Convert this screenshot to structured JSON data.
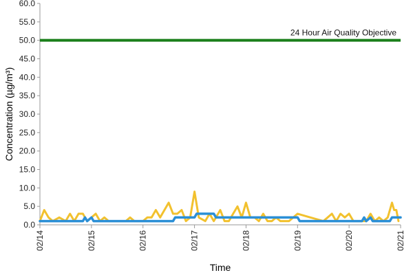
{
  "chart_data": {
    "type": "line",
    "xlabel": "Time",
    "ylabel": "Concentration (µg/m³)",
    "ylim": [
      0,
      60
    ],
    "yticks": [
      "0.0",
      "5.0",
      "10.0",
      "15.0",
      "20.0",
      "25.0",
      "30.0",
      "35.0",
      "40.0",
      "45.0",
      "50.0",
      "55.0",
      "60.0"
    ],
    "xlim": [
      "02/14",
      "02/21"
    ],
    "xticks": [
      "02/14",
      "02/15",
      "02/16",
      "02/17",
      "02/18",
      "02/19",
      "02/20",
      "02/21"
    ],
    "grid": false,
    "legend": "none",
    "objective": {
      "label": "24 Hour Air Quality Objective",
      "value": 50.0,
      "color": "#1a7f1a"
    },
    "series": [
      {
        "color": "#f2c12e",
        "points": [
          [
            "02/14 00:00",
            1
          ],
          [
            "02/14 02:00",
            4
          ],
          [
            "02/14 04:00",
            2
          ],
          [
            "02/14 06:00",
            1
          ],
          [
            "02/14 09:00",
            2
          ],
          [
            "02/14 12:00",
            1
          ],
          [
            "02/14 14:00",
            3
          ],
          [
            "02/14 16:00",
            1
          ],
          [
            "02/14 18:00",
            3
          ],
          [
            "02/14 20:00",
            3
          ],
          [
            "02/14 22:00",
            1
          ],
          [
            "02/15 00:00",
            2
          ],
          [
            "02/15 02:00",
            3
          ],
          [
            "02/15 04:00",
            1
          ],
          [
            "02/15 06:00",
            2
          ],
          [
            "02/15 08:00",
            1
          ],
          [
            "02/15 12:00",
            1
          ],
          [
            "02/15 16:00",
            1
          ],
          [
            "02/15 18:00",
            2
          ],
          [
            "02/15 20:00",
            1
          ],
          [
            "02/16 00:00",
            1
          ],
          [
            "02/16 02:00",
            2
          ],
          [
            "02/16 04:00",
            2
          ],
          [
            "02/16 06:00",
            4
          ],
          [
            "02/16 08:00",
            2
          ],
          [
            "02/16 10:00",
            4
          ],
          [
            "02/16 12:00",
            6
          ],
          [
            "02/16 14:00",
            3
          ],
          [
            "02/16 16:00",
            3
          ],
          [
            "02/16 18:00",
            4
          ],
          [
            "02/16 20:00",
            1
          ],
          [
            "02/16 22:00",
            2
          ],
          [
            "02/17 00:00",
            9
          ],
          [
            "02/17 02:00",
            2
          ],
          [
            "02/17 05:00",
            1
          ],
          [
            "02/17 07:00",
            3
          ],
          [
            "02/17 09:00",
            1
          ],
          [
            "02/17 12:00",
            4
          ],
          [
            "02/17 14:00",
            1
          ],
          [
            "02/17 16:00",
            1
          ],
          [
            "02/17 18:00",
            3
          ],
          [
            "02/17 20:00",
            5
          ],
          [
            "02/17 22:00",
            2
          ],
          [
            "02/18 00:00",
            6
          ],
          [
            "02/18 02:00",
            2
          ],
          [
            "02/18 04:00",
            2
          ],
          [
            "02/18 06:00",
            1
          ],
          [
            "02/18 08:00",
            3
          ],
          [
            "02/18 10:00",
            1
          ],
          [
            "02/18 12:00",
            1
          ],
          [
            "02/18 14:00",
            2
          ],
          [
            "02/18 16:00",
            1
          ],
          [
            "02/18 18:00",
            1
          ],
          [
            "02/18 20:00",
            1
          ],
          [
            "02/19 00:00",
            3
          ],
          [
            "02/19 06:00",
            2
          ],
          [
            "02/19 12:00",
            1
          ],
          [
            "02/19 14:00",
            2
          ],
          [
            "02/19 16:00",
            3
          ],
          [
            "02/19 18:00",
            1
          ],
          [
            "02/19 20:00",
            3
          ],
          [
            "02/19 22:00",
            2
          ],
          [
            "02/20 00:00",
            3
          ],
          [
            "02/20 02:00",
            1
          ],
          [
            "02/20 06:00",
            1
          ],
          [
            "02/20 08:00",
            1
          ],
          [
            "02/20 10:00",
            3
          ],
          [
            "02/20 12:00",
            1
          ],
          [
            "02/20 14:00",
            2
          ],
          [
            "02/20 16:00",
            1
          ],
          [
            "02/20 18:00",
            2
          ],
          [
            "02/20 20:00",
            6
          ],
          [
            "02/20 21:00",
            4
          ],
          [
            "02/20 22:00",
            4
          ],
          [
            "02/20 23:00",
            1
          ]
        ]
      },
      {
        "color": "#2b8fd6",
        "points": [
          [
            "02/14 00:00",
            1
          ],
          [
            "02/14 20:00",
            1
          ],
          [
            "02/14 21:00",
            2
          ],
          [
            "02/14 22:00",
            1
          ],
          [
            "02/15 00:00",
            2
          ],
          [
            "02/15 01:00",
            1
          ],
          [
            "02/15 03:00",
            1
          ],
          [
            "02/16 00:00",
            1
          ],
          [
            "02/16 14:00",
            1
          ],
          [
            "02/16 15:00",
            2
          ],
          [
            "02/17 00:00",
            2
          ],
          [
            "02/17 01:00",
            3
          ],
          [
            "02/17 09:00",
            3
          ],
          [
            "02/17 10:00",
            2
          ],
          [
            "02/19 00:00",
            2
          ],
          [
            "02/19 01:00",
            1
          ],
          [
            "02/20 06:00",
            1
          ],
          [
            "02/20 07:00",
            2
          ],
          [
            "02/20 08:00",
            1
          ],
          [
            "02/20 10:00",
            2
          ],
          [
            "02/20 11:00",
            1
          ],
          [
            "02/20 19:00",
            1
          ],
          [
            "02/20 20:00",
            2
          ],
          [
            "02/21 00:00",
            2
          ]
        ]
      }
    ]
  }
}
